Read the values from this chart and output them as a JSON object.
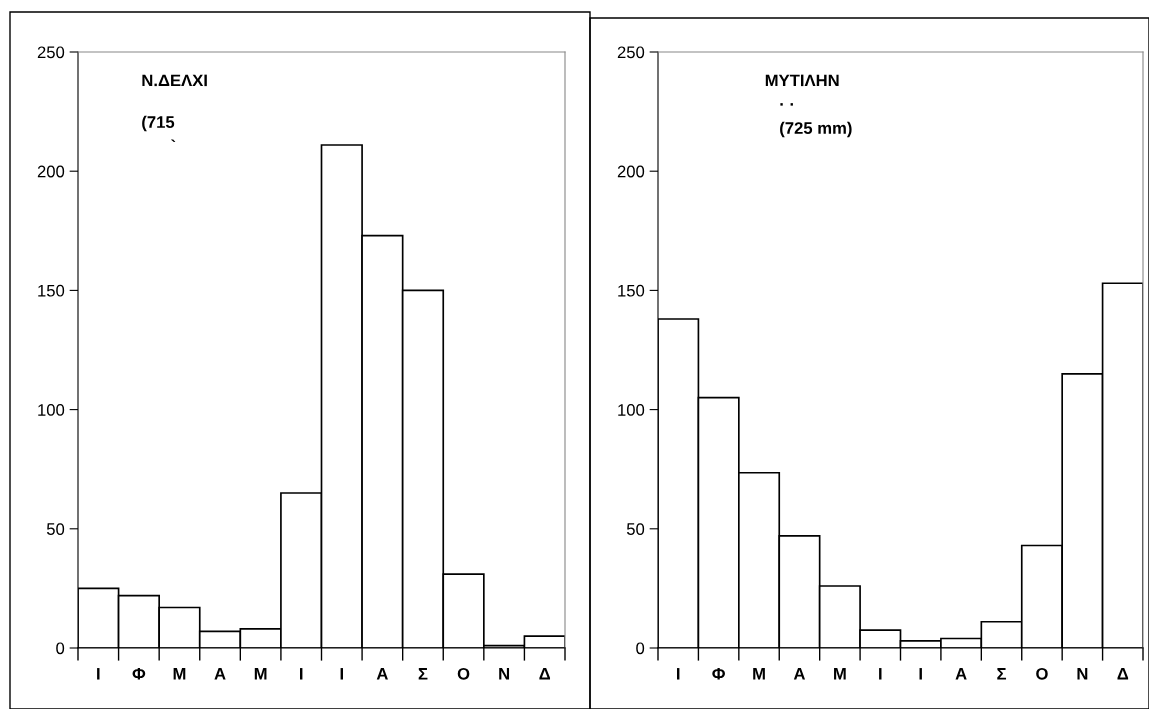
{
  "chart_data": [
    {
      "type": "bar",
      "categories": [
        "Ι",
        "Φ",
        "Μ",
        "Α",
        "Μ",
        "Ι",
        "Ι",
        "Α",
        "Σ",
        "Ο",
        "Ν",
        "Δ"
      ],
      "values": [
        25,
        22,
        17,
        7,
        8,
        65,
        211,
        173,
        150,
        31,
        1,
        5
      ],
      "color": "#ffffff",
      "ylim": [
        0,
        250
      ],
      "yticks": [
        0,
        50,
        100,
        150,
        200,
        250
      ],
      "grid": false,
      "legend": false,
      "annotations": [
        "Ν.ΔΕΛΧΙ",
        "(715",
        "`"
      ]
    },
    {
      "type": "bar",
      "categories": [
        "Ι",
        "Φ",
        "Μ",
        "Α",
        "Μ",
        "Ι",
        "Ι",
        "Α",
        "Σ",
        "Ο",
        "Ν",
        "Δ"
      ],
      "values": [
        138,
        105,
        73.5,
        47,
        26,
        7.5,
        3,
        4,
        11,
        43,
        115,
        153
      ],
      "color": "#ffffff",
      "ylim": [
        0,
        250
      ],
      "yticks": [
        0,
        50,
        100,
        150,
        200,
        250
      ],
      "grid": false,
      "legend": false,
      "annotations": [
        "ΜΥΤΙΛΗΝ",
        "· ·",
        "(725 mm)"
      ]
    }
  ]
}
